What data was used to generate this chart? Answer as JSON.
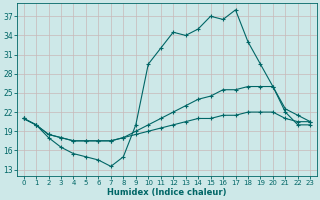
{
  "xlabel": "Humidex (Indice chaleur)",
  "bg_color": "#cde8e8",
  "line_color": "#006666",
  "grid_color": "#b8d8d8",
  "xlim": [
    -0.5,
    23.5
  ],
  "ylim": [
    12,
    39
  ],
  "yticks": [
    13,
    16,
    19,
    22,
    25,
    28,
    31,
    34,
    37
  ],
  "xticks": [
    0,
    1,
    2,
    3,
    4,
    5,
    6,
    7,
    8,
    9,
    10,
    11,
    12,
    13,
    14,
    15,
    16,
    17,
    18,
    19,
    20,
    21,
    22,
    23
  ],
  "line_max": [
    [
      0,
      21.0
    ],
    [
      1,
      20.0
    ],
    [
      2,
      18.0
    ],
    [
      3,
      16.5
    ],
    [
      4,
      15.5
    ],
    [
      5,
      15.0
    ],
    [
      6,
      14.5
    ],
    [
      7,
      13.5
    ],
    [
      8,
      15.0
    ],
    [
      9,
      20.0
    ],
    [
      10,
      29.5
    ],
    [
      11,
      32.0
    ],
    [
      12,
      34.5
    ],
    [
      13,
      34.0
    ],
    [
      14,
      35.0
    ],
    [
      15,
      37.0
    ],
    [
      16,
      36.5
    ],
    [
      17,
      38.0
    ],
    [
      18,
      33.0
    ],
    [
      19,
      29.5
    ],
    [
      20,
      26.0
    ],
    [
      21,
      22.0
    ],
    [
      22,
      20.0
    ],
    [
      23,
      20.0
    ]
  ],
  "line_avg": [
    [
      0,
      21.0
    ],
    [
      1,
      20.0
    ],
    [
      2,
      18.5
    ],
    [
      3,
      18.0
    ],
    [
      4,
      17.5
    ],
    [
      5,
      17.5
    ],
    [
      6,
      17.5
    ],
    [
      7,
      17.5
    ],
    [
      8,
      18.0
    ],
    [
      9,
      19.0
    ],
    [
      10,
      20.0
    ],
    [
      11,
      21.0
    ],
    [
      12,
      22.0
    ],
    [
      13,
      23.0
    ],
    [
      14,
      24.0
    ],
    [
      15,
      24.5
    ],
    [
      16,
      25.5
    ],
    [
      17,
      25.5
    ],
    [
      18,
      26.0
    ],
    [
      19,
      26.0
    ],
    [
      20,
      26.0
    ],
    [
      21,
      22.5
    ],
    [
      22,
      21.5
    ],
    [
      23,
      20.5
    ]
  ],
  "line_min": [
    [
      0,
      21.0
    ],
    [
      1,
      20.0
    ],
    [
      2,
      18.5
    ],
    [
      3,
      18.0
    ],
    [
      4,
      17.5
    ],
    [
      5,
      17.5
    ],
    [
      6,
      17.5
    ],
    [
      7,
      17.5
    ],
    [
      8,
      18.0
    ],
    [
      9,
      18.5
    ],
    [
      10,
      19.0
    ],
    [
      11,
      19.5
    ],
    [
      12,
      20.0
    ],
    [
      13,
      20.5
    ],
    [
      14,
      21.0
    ],
    [
      15,
      21.0
    ],
    [
      16,
      21.5
    ],
    [
      17,
      21.5
    ],
    [
      18,
      22.0
    ],
    [
      19,
      22.0
    ],
    [
      20,
      22.0
    ],
    [
      21,
      21.0
    ],
    [
      22,
      20.5
    ],
    [
      23,
      20.5
    ]
  ]
}
